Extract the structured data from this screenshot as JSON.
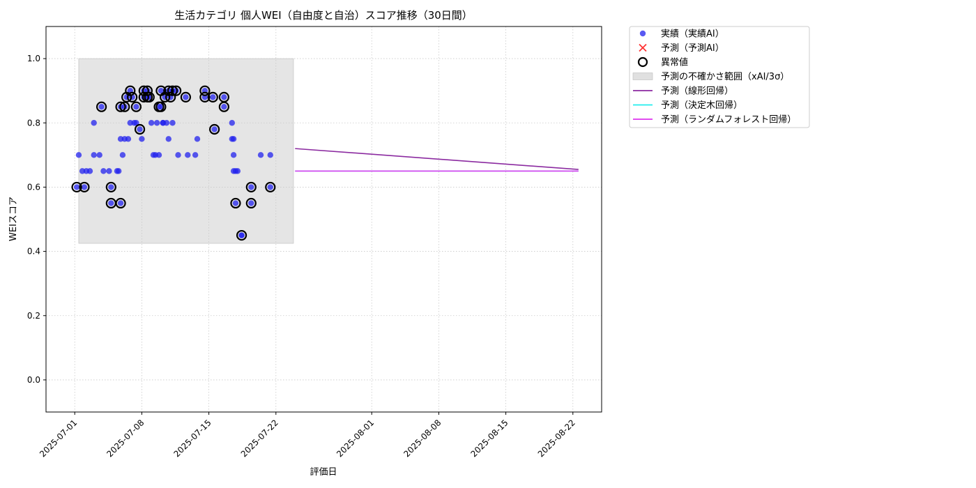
{
  "chart_data": {
    "type": "scatter",
    "title": "生活カテゴリ 個人WEI（自由度と自治）スコア推移（30日間）",
    "xlabel": "評価日",
    "ylabel": "WEIスコア",
    "xlim": [
      "2025-06-28",
      "2025-08-25"
    ],
    "ylim": [
      -0.1,
      1.1
    ],
    "x_ticks": [
      "2025-07-01",
      "2025-07-08",
      "2025-07-15",
      "2025-07-22",
      "2025-08-01",
      "2025-08-08",
      "2025-08-15",
      "2025-08-22"
    ],
    "y_ticks": [
      0.0,
      0.2,
      0.4,
      0.6,
      0.8,
      1.0
    ],
    "y_tick_labels": [
      "0.0",
      "0.2",
      "0.4",
      "0.6",
      "0.8",
      "1.0"
    ],
    "grid": true,
    "legend_position": "outside-top-right",
    "colors": {
      "actual": "#2222ee",
      "predicted": "#ff3333",
      "anomaly": "#000000",
      "uncertainty": "#d3d3d3",
      "linear": "#8b2aa0",
      "tree": "#22eeee",
      "forest": "#dd33ee"
    },
    "legend": [
      {
        "label": "実績（実績AI）",
        "kind": "dot",
        "color": "#2222ee"
      },
      {
        "label": "予測（予測AI）",
        "kind": "x",
        "color": "#ff3333"
      },
      {
        "label": "異常値",
        "kind": "ring",
        "color": "#000000"
      },
      {
        "label": "予測の不確かさ範囲（xAI/3σ）",
        "kind": "box",
        "color": "#d3d3d3"
      },
      {
        "label": "予測（線形回帰）",
        "kind": "line",
        "color": "#8b2aa0"
      },
      {
        "label": "予測（決定木回帰）",
        "kind": "line",
        "color": "#22eeee"
      },
      {
        "label": "予測（ランダムフォレスト回帰）",
        "kind": "line",
        "color": "#dd33ee"
      }
    ],
    "uncertainty_band": {
      "x": [
        "2025-07-01 10:00",
        "2025-07-23 20:00"
      ],
      "y": [
        0.425,
        1.0
      ]
    },
    "actual": [
      [
        "2025-07-01 05:00",
        0.6
      ],
      [
        "2025-07-01 10:00",
        0.7
      ],
      [
        "2025-07-01 19:00",
        0.65
      ],
      [
        "2025-07-02 00:00",
        0.6
      ],
      [
        "2025-07-02 05:00",
        0.65
      ],
      [
        "2025-07-02 14:00",
        0.65
      ],
      [
        "2025-07-03 00:00",
        0.8
      ],
      [
        "2025-07-03 00:00",
        0.7
      ],
      [
        "2025-07-03 14:00",
        0.7
      ],
      [
        "2025-07-03 19:00",
        0.85
      ],
      [
        "2025-07-04 00:00",
        0.65
      ],
      [
        "2025-07-04 14:00",
        0.65
      ],
      [
        "2025-07-04 19:00",
        0.6
      ],
      [
        "2025-07-04 19:00",
        0.55
      ],
      [
        "2025-07-05 10:00",
        0.65
      ],
      [
        "2025-07-05 14:00",
        0.65
      ],
      [
        "2025-07-05 19:00",
        0.55
      ],
      [
        "2025-07-05 19:00",
        0.75
      ],
      [
        "2025-07-05 19:00",
        0.85
      ],
      [
        "2025-07-06 00:00",
        0.7
      ],
      [
        "2025-07-06 05:00",
        0.85
      ],
      [
        "2025-07-06 05:00",
        0.75
      ],
      [
        "2025-07-06 10:00",
        0.88
      ],
      [
        "2025-07-06 14:00",
        0.75
      ],
      [
        "2025-07-06 19:00",
        0.8
      ],
      [
        "2025-07-06 19:00",
        0.9
      ],
      [
        "2025-07-07 00:00",
        0.88
      ],
      [
        "2025-07-07 05:00",
        0.8
      ],
      [
        "2025-07-07 10:00",
        0.85
      ],
      [
        "2025-07-07 10:00",
        0.8
      ],
      [
        "2025-07-07 19:00",
        0.78
      ],
      [
        "2025-07-08 00:00",
        0.75
      ],
      [
        "2025-07-08 05:00",
        0.9
      ],
      [
        "2025-07-08 05:00",
        0.88
      ],
      [
        "2025-07-08 14:00",
        0.9
      ],
      [
        "2025-07-08 14:00",
        0.88
      ],
      [
        "2025-07-08 19:00",
        0.88
      ],
      [
        "2025-07-09 00:00",
        0.8
      ],
      [
        "2025-07-09 05:00",
        0.7
      ],
      [
        "2025-07-09 10:00",
        0.7
      ],
      [
        "2025-07-09 14:00",
        0.8
      ],
      [
        "2025-07-09 19:00",
        0.85
      ],
      [
        "2025-07-09 19:00",
        0.7
      ],
      [
        "2025-07-10 00:00",
        0.9
      ],
      [
        "2025-07-10 00:00",
        0.85
      ],
      [
        "2025-07-10 05:00",
        0.8
      ],
      [
        "2025-07-10 05:00",
        0.8
      ],
      [
        "2025-07-10 10:00",
        0.88
      ],
      [
        "2025-07-10 14:00",
        0.8
      ],
      [
        "2025-07-10 19:00",
        0.9
      ],
      [
        "2025-07-10 19:00",
        0.75
      ],
      [
        "2025-07-11 00:00",
        0.88
      ],
      [
        "2025-07-11 05:00",
        0.9
      ],
      [
        "2025-07-11 05:00",
        0.8
      ],
      [
        "2025-07-11 14:00",
        0.9
      ],
      [
        "2025-07-11 19:00",
        0.7
      ],
      [
        "2025-07-12 14:00",
        0.88
      ],
      [
        "2025-07-12 19:00",
        0.7
      ],
      [
        "2025-07-13 14:00",
        0.7
      ],
      [
        "2025-07-13 19:00",
        0.75
      ],
      [
        "2025-07-14 14:00",
        0.9
      ],
      [
        "2025-07-14 14:00",
        0.88
      ],
      [
        "2025-07-15 10:00",
        0.88
      ],
      [
        "2025-07-15 14:00",
        0.78
      ],
      [
        "2025-07-16 14:00",
        0.85
      ],
      [
        "2025-07-16 14:00",
        0.88
      ],
      [
        "2025-07-17 10:00",
        0.8
      ],
      [
        "2025-07-17 10:00",
        0.75
      ],
      [
        "2025-07-17 14:00",
        0.7
      ],
      [
        "2025-07-17 14:00",
        0.65
      ],
      [
        "2025-07-17 14:00",
        0.75
      ],
      [
        "2025-07-17 19:00",
        0.65
      ],
      [
        "2025-07-17 19:00",
        0.55
      ],
      [
        "2025-07-18 00:00",
        0.65
      ],
      [
        "2025-07-18 10:00",
        0.45
      ],
      [
        "2025-07-18 10:00",
        0.45
      ],
      [
        "2025-07-19 10:00",
        0.6
      ],
      [
        "2025-07-19 10:00",
        0.55
      ],
      [
        "2025-07-20 10:00",
        0.7
      ],
      [
        "2025-07-21 10:00",
        0.6
      ],
      [
        "2025-07-21 10:00",
        0.7
      ]
    ],
    "anomalies": [
      [
        "2025-07-01 05:00",
        0.6
      ],
      [
        "2025-07-02 00:00",
        0.6
      ],
      [
        "2025-07-03 19:00",
        0.85
      ],
      [
        "2025-07-04 19:00",
        0.6
      ],
      [
        "2025-07-04 19:00",
        0.55
      ],
      [
        "2025-07-05 19:00",
        0.55
      ],
      [
        "2025-07-05 19:00",
        0.85
      ],
      [
        "2025-07-06 05:00",
        0.85
      ],
      [
        "2025-07-06 10:00",
        0.88
      ],
      [
        "2025-07-06 19:00",
        0.9
      ],
      [
        "2025-07-07 00:00",
        0.88
      ],
      [
        "2025-07-07 10:00",
        0.85
      ],
      [
        "2025-07-07 19:00",
        0.78
      ],
      [
        "2025-07-08 05:00",
        0.9
      ],
      [
        "2025-07-08 05:00",
        0.88
      ],
      [
        "2025-07-08 14:00",
        0.9
      ],
      [
        "2025-07-08 14:00",
        0.88
      ],
      [
        "2025-07-08 19:00",
        0.88
      ],
      [
        "2025-07-09 19:00",
        0.85
      ],
      [
        "2025-07-10 00:00",
        0.9
      ],
      [
        "2025-07-10 00:00",
        0.85
      ],
      [
        "2025-07-10 10:00",
        0.88
      ],
      [
        "2025-07-10 19:00",
        0.9
      ],
      [
        "2025-07-11 00:00",
        0.88
      ],
      [
        "2025-07-11 05:00",
        0.9
      ],
      [
        "2025-07-11 14:00",
        0.9
      ],
      [
        "2025-07-12 14:00",
        0.88
      ],
      [
        "2025-07-14 14:00",
        0.9
      ],
      [
        "2025-07-14 14:00",
        0.88
      ],
      [
        "2025-07-15 10:00",
        0.88
      ],
      [
        "2025-07-15 14:00",
        0.78
      ],
      [
        "2025-07-16 14:00",
        0.85
      ],
      [
        "2025-07-16 14:00",
        0.88
      ],
      [
        "2025-07-17 19:00",
        0.55
      ],
      [
        "2025-07-18 10:00",
        0.45
      ],
      [
        "2025-07-19 10:00",
        0.6
      ],
      [
        "2025-07-19 10:00",
        0.55
      ],
      [
        "2025-07-21 10:00",
        0.6
      ]
    ],
    "linear_regression": [
      [
        "2025-07-24 00:00",
        0.72
      ],
      [
        "2025-08-22 14:00",
        0.655
      ]
    ],
    "decision_tree": [
      [
        "2025-07-24 00:00",
        0.65
      ],
      [
        "2025-08-22 14:00",
        0.65
      ]
    ],
    "random_forest": [
      [
        "2025-07-24 00:00",
        0.65
      ],
      [
        "2025-08-22 14:00",
        0.65
      ]
    ]
  }
}
